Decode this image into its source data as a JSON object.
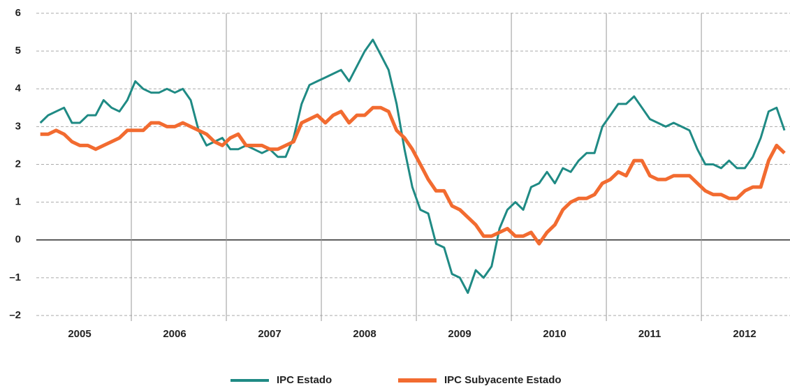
{
  "chart_data": {
    "type": "line",
    "x": [
      2005.042,
      2005.125,
      2005.208,
      2005.292,
      2005.375,
      2005.458,
      2005.542,
      2005.625,
      2005.708,
      2005.792,
      2005.875,
      2005.958,
      2006.042,
      2006.125,
      2006.208,
      2006.292,
      2006.375,
      2006.458,
      2006.542,
      2006.625,
      2006.708,
      2006.792,
      2006.875,
      2006.958,
      2007.042,
      2007.125,
      2007.208,
      2007.292,
      2007.375,
      2007.458,
      2007.542,
      2007.625,
      2007.708,
      2007.792,
      2007.875,
      2007.958,
      2008.042,
      2008.125,
      2008.208,
      2008.292,
      2008.375,
      2008.458,
      2008.542,
      2008.625,
      2008.708,
      2008.792,
      2008.875,
      2008.958,
      2009.042,
      2009.125,
      2009.208,
      2009.292,
      2009.375,
      2009.458,
      2009.542,
      2009.625,
      2009.708,
      2009.792,
      2009.875,
      2009.958,
      2010.042,
      2010.125,
      2010.208,
      2010.292,
      2010.375,
      2010.458,
      2010.542,
      2010.625,
      2010.708,
      2010.792,
      2010.875,
      2010.958,
      2011.042,
      2011.125,
      2011.208,
      2011.292,
      2011.375,
      2011.458,
      2011.542,
      2011.625,
      2011.708,
      2011.792,
      2011.875,
      2011.958,
      2012.042,
      2012.125,
      2012.208,
      2012.292,
      2012.375,
      2012.458,
      2012.542,
      2012.625,
      2012.708,
      2012.792,
      2012.875
    ],
    "series": [
      {
        "name": "IPC Estado",
        "color": "#1f8a84",
        "values": [
          3.1,
          3.3,
          3.4,
          3.5,
          3.1,
          3.1,
          3.3,
          3.3,
          3.7,
          3.5,
          3.4,
          3.7,
          4.2,
          4.0,
          3.9,
          3.9,
          4.0,
          3.9,
          4.0,
          3.7,
          2.9,
          2.5,
          2.6,
          2.7,
          2.4,
          2.4,
          2.5,
          2.4,
          2.3,
          2.4,
          2.2,
          2.2,
          2.7,
          3.6,
          4.1,
          4.2,
          4.3,
          4.4,
          4.5,
          4.2,
          4.6,
          5.0,
          5.3,
          4.9,
          4.5,
          3.6,
          2.4,
          1.4,
          0.8,
          0.7,
          -0.1,
          -0.2,
          -0.9,
          -1.0,
          -1.4,
          -0.8,
          -1.0,
          -0.7,
          0.3,
          0.8,
          1.0,
          0.8,
          1.4,
          1.5,
          1.8,
          1.5,
          1.9,
          1.8,
          2.1,
          2.3,
          2.3,
          3.0,
          3.3,
          3.6,
          3.6,
          3.8,
          3.5,
          3.2,
          3.1,
          3.0,
          3.1,
          3.0,
          2.9,
          2.4,
          2.0,
          2.0,
          1.9,
          2.1,
          1.9,
          1.9,
          2.2,
          2.7,
          3.4,
          3.5,
          2.9
        ]
      },
      {
        "name": "IPC Subyacente Estado",
        "color": "#f26b30",
        "values": [
          2.8,
          2.8,
          2.9,
          2.8,
          2.6,
          2.5,
          2.5,
          2.4,
          2.5,
          2.6,
          2.7,
          2.9,
          2.9,
          2.9,
          3.1,
          3.1,
          3.0,
          3.0,
          3.1,
          3.0,
          2.9,
          2.8,
          2.6,
          2.5,
          2.7,
          2.8,
          2.5,
          2.5,
          2.5,
          2.4,
          2.4,
          2.5,
          2.6,
          3.1,
          3.2,
          3.3,
          3.1,
          3.3,
          3.4,
          3.1,
          3.3,
          3.3,
          3.5,
          3.5,
          3.4,
          2.9,
          2.7,
          2.4,
          2.0,
          1.6,
          1.3,
          1.3,
          0.9,
          0.8,
          0.6,
          0.4,
          0.1,
          0.1,
          0.2,
          0.3,
          0.1,
          0.1,
          0.2,
          -0.1,
          0.2,
          0.4,
          0.8,
          1.0,
          1.1,
          1.1,
          1.2,
          1.5,
          1.6,
          1.8,
          1.7,
          2.1,
          2.1,
          1.7,
          1.6,
          1.6,
          1.7,
          1.7,
          1.7,
          1.5,
          1.3,
          1.2,
          1.2,
          1.1,
          1.1,
          1.3,
          1.4,
          1.4,
          2.1,
          2.5,
          2.3
        ]
      }
    ],
    "categories": [
      "2005",
      "2006",
      "2007",
      "2008",
      "2009",
      "2010",
      "2011",
      "2012"
    ],
    "xlim": [
      2005,
      2012.933
    ],
    "xticks": [
      2005,
      2006,
      2007,
      2008,
      2009,
      2010,
      2011,
      2012
    ],
    "ylim": [
      -2,
      6
    ],
    "yticks": [
      {
        "value": -2,
        "label": "–2"
      },
      {
        "value": -1,
        "label": "–1"
      },
      0,
      1,
      2,
      3,
      4,
      5,
      6
    ],
    "grid": true
  }
}
